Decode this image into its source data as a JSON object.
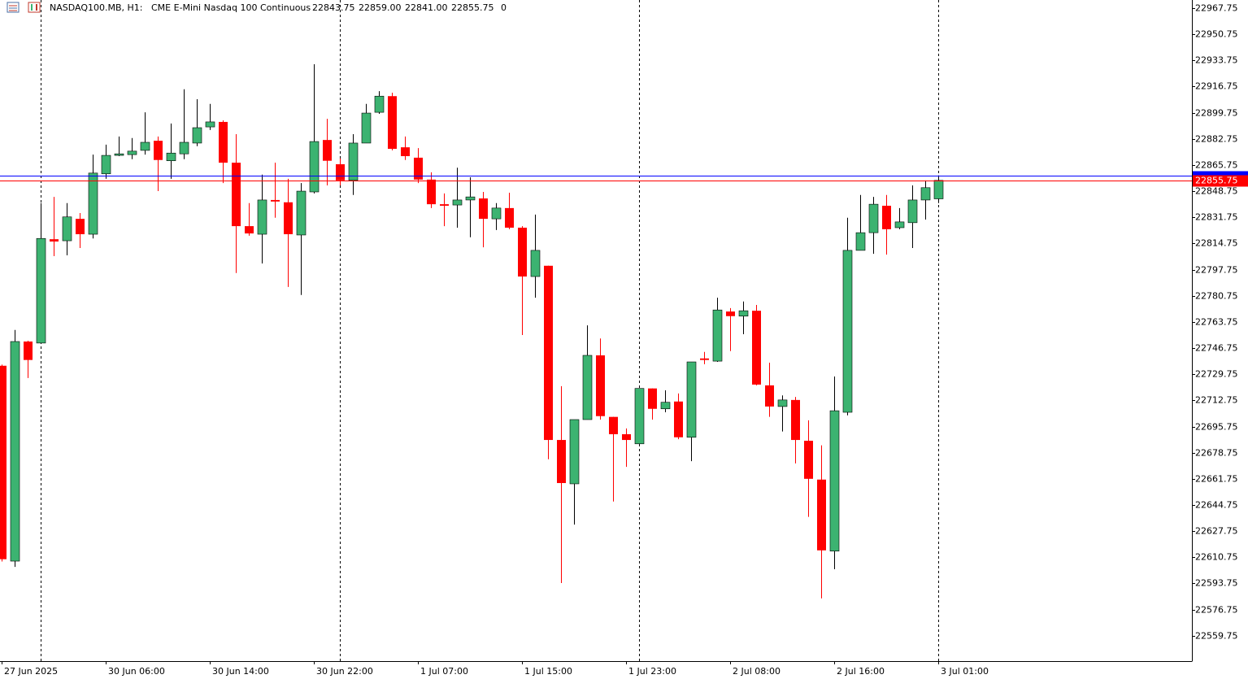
{
  "header": {
    "symbol": "NASDAQ100.MB, H1:",
    "description": "CME E-Mini Nasdaq 100 Continuous",
    "open": "22843.75",
    "high": "22859.00",
    "low": "22841.00",
    "close": "22855.75",
    "volume": "0"
  },
  "chart_data": {
    "type": "candlestick",
    "categories": [
      "27 Jun 2025",
      null,
      null,
      null,
      null,
      null,
      null,
      null,
      "30 Jun 06:00",
      null,
      null,
      null,
      null,
      null,
      null,
      null,
      "30 Jun 14:00",
      null,
      null,
      null,
      null,
      null,
      null,
      null,
      "30 Jun 22:00",
      null,
      null,
      null,
      null,
      null,
      null,
      null,
      "1 Jul 07:00",
      null,
      null,
      null,
      null,
      null,
      null,
      null,
      "1 Jul 15:00",
      null,
      null,
      null,
      null,
      null,
      null,
      null,
      "1 Jul 23:00",
      null,
      null,
      null,
      null,
      null,
      null,
      null,
      "2 Jul 08:00",
      null,
      null,
      null,
      null,
      null,
      null,
      null,
      "2 Jul 16:00",
      null,
      null,
      null,
      null,
      null,
      null,
      null,
      "3 Jul 01:00"
    ],
    "open": [
      22735.25,
      22608.25,
      22751,
      22750,
      22817.5,
      22816.5,
      22830.75,
      22820.75,
      22860,
      22872,
      22872.5,
      22875.25,
      22881.5,
      22868.5,
      22873,
      22880,
      22890.5,
      22893.75,
      22867.25,
      22826,
      22820.75,
      22843,
      22841.5,
      22820.25,
      22848.25,
      22882,
      22866.25,
      22855.75,
      22880,
      22900,
      22910.5,
      22877.25,
      22870.5,
      22856.25,
      22840.25,
      22839.75,
      22843,
      22844,
      22830.75,
      22837.75,
      22825,
      22793.25,
      22800.25,
      22687,
      22658.5,
      22700.25,
      22742,
      22702,
      22690.75,
      22684.5,
      22720.5,
      22707.25,
      22712,
      22688.75,
      22740,
      22738.25,
      22770.5,
      22767.5,
      22771,
      22722.5,
      22708.75,
      22713,
      22686.5,
      22661.25,
      22614.75,
      22705,
      22810.25,
      22821.75,
      22839.25,
      22825,
      22828.25,
      22843,
      22843.75
    ],
    "high": [
      22736,
      22758.5,
      22751.5,
      22841,
      22845,
      22841,
      22834.5,
      22872.5,
      22879,
      22884.25,
      22883.25,
      22900,
      22884.25,
      22892.75,
      22915,
      22908.5,
      22905.5,
      22894.75,
      22885.75,
      22841,
      22859.5,
      22867.25,
      22856.75,
      22854,
      22931.25,
      22895.75,
      22870,
      22885.75,
      22905.5,
      22913.75,
      22912.75,
      22884.25,
      22876.75,
      22861,
      22847.25,
      22864,
      22857.75,
      22848.25,
      22841,
      22847.75,
      22826,
      22833.5,
      22800.25,
      22722,
      22700.25,
      22761.5,
      22753,
      22702,
      22694.5,
      22720.5,
      22720.5,
      22719.25,
      22717.25,
      22737.75,
      22744.25,
      22779.5,
      22772.75,
      22777,
      22774.75,
      22737.25,
      22716,
      22715,
      22699.75,
      22683.5,
      22728.25,
      22831.5,
      22846.25,
      22845,
      22846.25,
      22837.75,
      22852.5,
      22855.75,
      22859
    ],
    "low": [
      22608,
      22604.5,
      22727.25,
      22749.5,
      22806.5,
      22807,
      22811.75,
      22818,
      22856.75,
      22871.5,
      22869.5,
      22872.5,
      22848.75,
      22856.75,
      22869.5,
      22878,
      22888.5,
      22854,
      22795.5,
      22819.75,
      22801.75,
      22831.5,
      22786.5,
      22781.25,
      22847.25,
      22852.5,
      22852.5,
      22846.25,
      22880,
      22899,
      22875.25,
      22869,
      22854,
      22837.75,
      22826,
      22825,
      22818.75,
      22812.25,
      22823.5,
      22824,
      22755.25,
      22779.5,
      22674.5,
      22594,
      22632,
      22700.25,
      22700.25,
      22647,
      22669.5,
      22683.5,
      22700.25,
      22705,
      22687.5,
      22673.25,
      22736.25,
      22737.75,
      22744.75,
      22755.75,
      22722.5,
      22702,
      22692.5,
      22671.75,
      22637,
      22584,
      22603,
      22703,
      22810.25,
      22808,
      22807.5,
      22824,
      22811.75,
      22830.25,
      22841
    ],
    "close": [
      22609.5,
      22751,
      22739,
      22818,
      22816,
      22832,
      22820.75,
      22860.5,
      22872,
      22873,
      22874.75,
      22880.5,
      22869,
      22873.5,
      22880.5,
      22890,
      22893.75,
      22867.25,
      22826,
      22821.25,
      22843,
      22842,
      22820.75,
      22848.75,
      22881,
      22868.5,
      22855.75,
      22880,
      22899.5,
      22910.5,
      22876.25,
      22871.5,
      22856.25,
      22840.25,
      22839.25,
      22843,
      22845,
      22830.75,
      22837.75,
      22825,
      22793.25,
      22810.25,
      22687,
      22659,
      22700.25,
      22742,
      22702.5,
      22690.75,
      22687,
      22720.5,
      22707.25,
      22711.5,
      22688.75,
      22737.75,
      22739,
      22771.5,
      22767.5,
      22771,
      22723,
      22708.75,
      22713,
      22687,
      22661.75,
      22615.25,
      22706,
      22810.25,
      22821.75,
      22840.25,
      22824,
      22828.75,
      22843,
      22851,
      22855.75
    ],
    "up_color": "#3cb371",
    "down_color": "#ff0000",
    "ylim": [
      22543.25,
      22973
    ],
    "yticks": [
      22967.75,
      22950.75,
      22933.75,
      22916.75,
      22899.75,
      22882.75,
      22865.75,
      22848.75,
      22831.75,
      22814.75,
      22797.75,
      22780.75,
      22763.75,
      22746.75,
      22729.75,
      22712.75,
      22695.75,
      22678.75,
      22661.75,
      22644.75,
      22627.75,
      22610.75,
      22593.75,
      22576.75,
      22559.75
    ],
    "last_price": 22855.75,
    "last_color": "#ff0000",
    "ask_price": 22859,
    "ask_color": "#0000ff"
  }
}
